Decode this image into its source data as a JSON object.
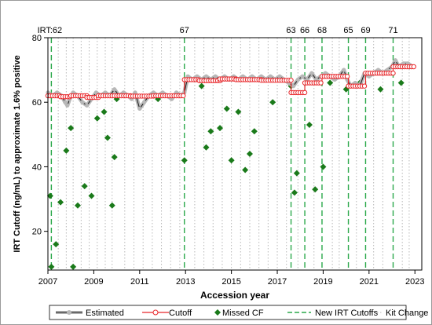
{
  "chart_data": {
    "type": "line",
    "xlabel": "Accession year",
    "ylabel": "IRT Cutoff (ng/mL) to approximate 1.6% positive",
    "xlim": [
      2007,
      2023.3
    ],
    "ylim": [
      8,
      80
    ],
    "x_ticks": [
      2007,
      2009,
      2011,
      2013,
      2015,
      2017,
      2019,
      2021,
      2023
    ],
    "y_ticks": [
      20,
      40,
      60,
      80
    ],
    "grid": false,
    "legend_position": "bottom",
    "legend": [
      "Estimated",
      "Cutoff",
      "Missed CF",
      "New IRT Cutoffs",
      "Kit Change"
    ],
    "colors": {
      "estimated_line": "#1a1a1a",
      "estimated_marker": "#b8b8b8",
      "cutoff": "#e8262a",
      "missed_cf": "#1a7a1a",
      "new_cutoff_line": "#2aa84a",
      "kit_change": "#b8b8b8"
    },
    "new_irt_cutoffs": [
      {
        "x": 2007.15,
        "label": "IRT:62"
      },
      {
        "x": 2012.95,
        "label": "67"
      },
      {
        "x": 2017.6,
        "label": "63"
      },
      {
        "x": 2018.2,
        "label": "66"
      },
      {
        "x": 2018.95,
        "label": "68"
      },
      {
        "x": 2020.1,
        "label": "65"
      },
      {
        "x": 2020.85,
        "label": "69"
      },
      {
        "x": 2022.05,
        "label": "71"
      }
    ],
    "kit_change_lines": [
      2007.45,
      2007.8,
      2008.1,
      2008.45,
      2008.8,
      2009.15,
      2009.5,
      2009.8,
      2010.35,
      2010.75,
      2011.15,
      2011.55,
      2011.95,
      2012.35,
      2012.75,
      2013.4,
      2013.8,
      2014.2,
      2014.6,
      2015.0,
      2015.4,
      2015.8,
      2016.2,
      2016.6,
      2017.0,
      2017.4,
      2017.9,
      2018.6,
      2019.4,
      2019.7,
      2020.45,
      2021.2,
      2021.6,
      2022.45,
      2022.75
    ],
    "series": [
      {
        "name": "Cutoff",
        "segments": [
          {
            "x_start": 2007.0,
            "x_end": 2007.55,
            "y": 62
          },
          {
            "x_start": 2007.55,
            "x_end": 2008.0,
            "y": 61.7
          },
          {
            "x_start": 2008.0,
            "x_end": 2008.7,
            "y": 62
          },
          {
            "x_start": 2008.7,
            "x_end": 2009.2,
            "y": 61.5
          },
          {
            "x_start": 2009.2,
            "x_end": 2010.6,
            "y": 62
          },
          {
            "x_start": 2010.6,
            "x_end": 2011.6,
            "y": 61.9
          },
          {
            "x_start": 2011.6,
            "x_end": 2012.95,
            "y": 62
          },
          {
            "x_start": 2012.95,
            "x_end": 2013.6,
            "y": 67
          },
          {
            "x_start": 2013.6,
            "x_end": 2014.5,
            "y": 66.7
          },
          {
            "x_start": 2014.5,
            "x_end": 2015.2,
            "y": 67.2
          },
          {
            "x_start": 2015.2,
            "x_end": 2016.3,
            "y": 67
          },
          {
            "x_start": 2016.3,
            "x_end": 2017.6,
            "y": 66.8
          },
          {
            "x_start": 2017.6,
            "x_end": 2018.2,
            "y": 63
          },
          {
            "x_start": 2018.2,
            "x_end": 2018.95,
            "y": 66
          },
          {
            "x_start": 2018.95,
            "x_end": 2020.1,
            "y": 68
          },
          {
            "x_start": 2020.1,
            "x_end": 2020.85,
            "y": 65
          },
          {
            "x_start": 2020.85,
            "x_end": 2022.05,
            "y": 69
          },
          {
            "x_start": 2022.05,
            "x_end": 2023.0,
            "y": 71
          }
        ]
      },
      {
        "name": "Estimated",
        "x": [
          2007.0,
          2007.2,
          2007.4,
          2007.6,
          2007.75,
          2007.85,
          2007.95,
          2008.1,
          2008.3,
          2008.5,
          2008.7,
          2008.9,
          2009.1,
          2009.3,
          2009.5,
          2009.7,
          2009.9,
          2010.1,
          2010.3,
          2010.5,
          2010.65,
          2010.8,
          2011.0,
          2011.2,
          2011.4,
          2011.6,
          2011.8,
          2012.0,
          2012.2,
          2012.4,
          2012.6,
          2012.8,
          2012.95,
          2013.1,
          2013.3,
          2013.5,
          2013.7,
          2013.9,
          2014.1,
          2014.3,
          2014.5,
          2014.7,
          2014.9,
          2015.1,
          2015.3,
          2015.5,
          2015.7,
          2015.9,
          2016.1,
          2016.3,
          2016.5,
          2016.7,
          2016.9,
          2017.1,
          2017.3,
          2017.5,
          2017.7,
          2017.9,
          2018.1,
          2018.3,
          2018.5,
          2018.7,
          2018.9,
          2019.1,
          2019.3,
          2019.5,
          2019.7,
          2019.9,
          2020.05,
          2020.2,
          2020.4,
          2020.6,
          2020.8,
          2021.0,
          2021.2,
          2021.4,
          2021.6,
          2021.8,
          2022.0,
          2022.15,
          2022.3,
          2022.5,
          2022.7,
          2022.9
        ],
        "values": [
          63,
          62,
          63,
          62,
          60,
          59,
          61,
          63,
          62,
          60,
          59,
          61,
          63,
          62,
          63,
          62,
          64,
          62,
          63,
          62,
          61,
          63,
          58,
          60,
          62,
          63,
          62,
          63,
          62,
          61,
          63,
          62,
          63,
          68,
          67,
          68,
          67,
          68,
          67,
          68,
          67,
          68,
          67,
          68,
          67,
          68,
          67,
          68,
          67,
          68,
          67,
          68,
          67,
          68,
          67,
          66,
          65,
          67,
          68,
          67,
          69,
          67,
          68,
          69,
          68,
          67,
          68,
          70,
          67,
          65,
          66,
          65,
          69,
          68,
          69,
          70,
          69,
          70,
          71,
          73,
          71,
          72,
          72,
          71
        ]
      },
      {
        "name": "Missed CF",
        "x": [
          2007.1,
          2007.15,
          2007.35,
          2007.55,
          2007.8,
          2008.0,
          2008.1,
          2008.3,
          2008.6,
          2008.9,
          2009.15,
          2009.45,
          2009.6,
          2009.8,
          2009.9,
          2010.0,
          2011.8,
          2012.95,
          2013.7,
          2013.9,
          2014.1,
          2014.5,
          2014.8,
          2015.0,
          2015.3,
          2015.6,
          2015.8,
          2016.0,
          2016.8,
          2017.6,
          2017.75,
          2017.85,
          2018.4,
          2018.65,
          2019.0,
          2019.3,
          2020.0,
          2020.6,
          2021.5,
          2022.4
        ],
        "values": [
          31,
          9,
          16,
          29,
          45,
          52,
          9,
          28,
          34,
          31,
          55,
          57,
          49,
          28,
          43,
          61,
          61,
          42,
          65,
          46,
          51,
          52,
          58,
          42,
          57,
          39,
          44,
          51,
          60,
          65,
          32,
          38,
          53,
          33,
          40,
          66,
          64,
          66,
          64,
          66
        ]
      }
    ]
  }
}
